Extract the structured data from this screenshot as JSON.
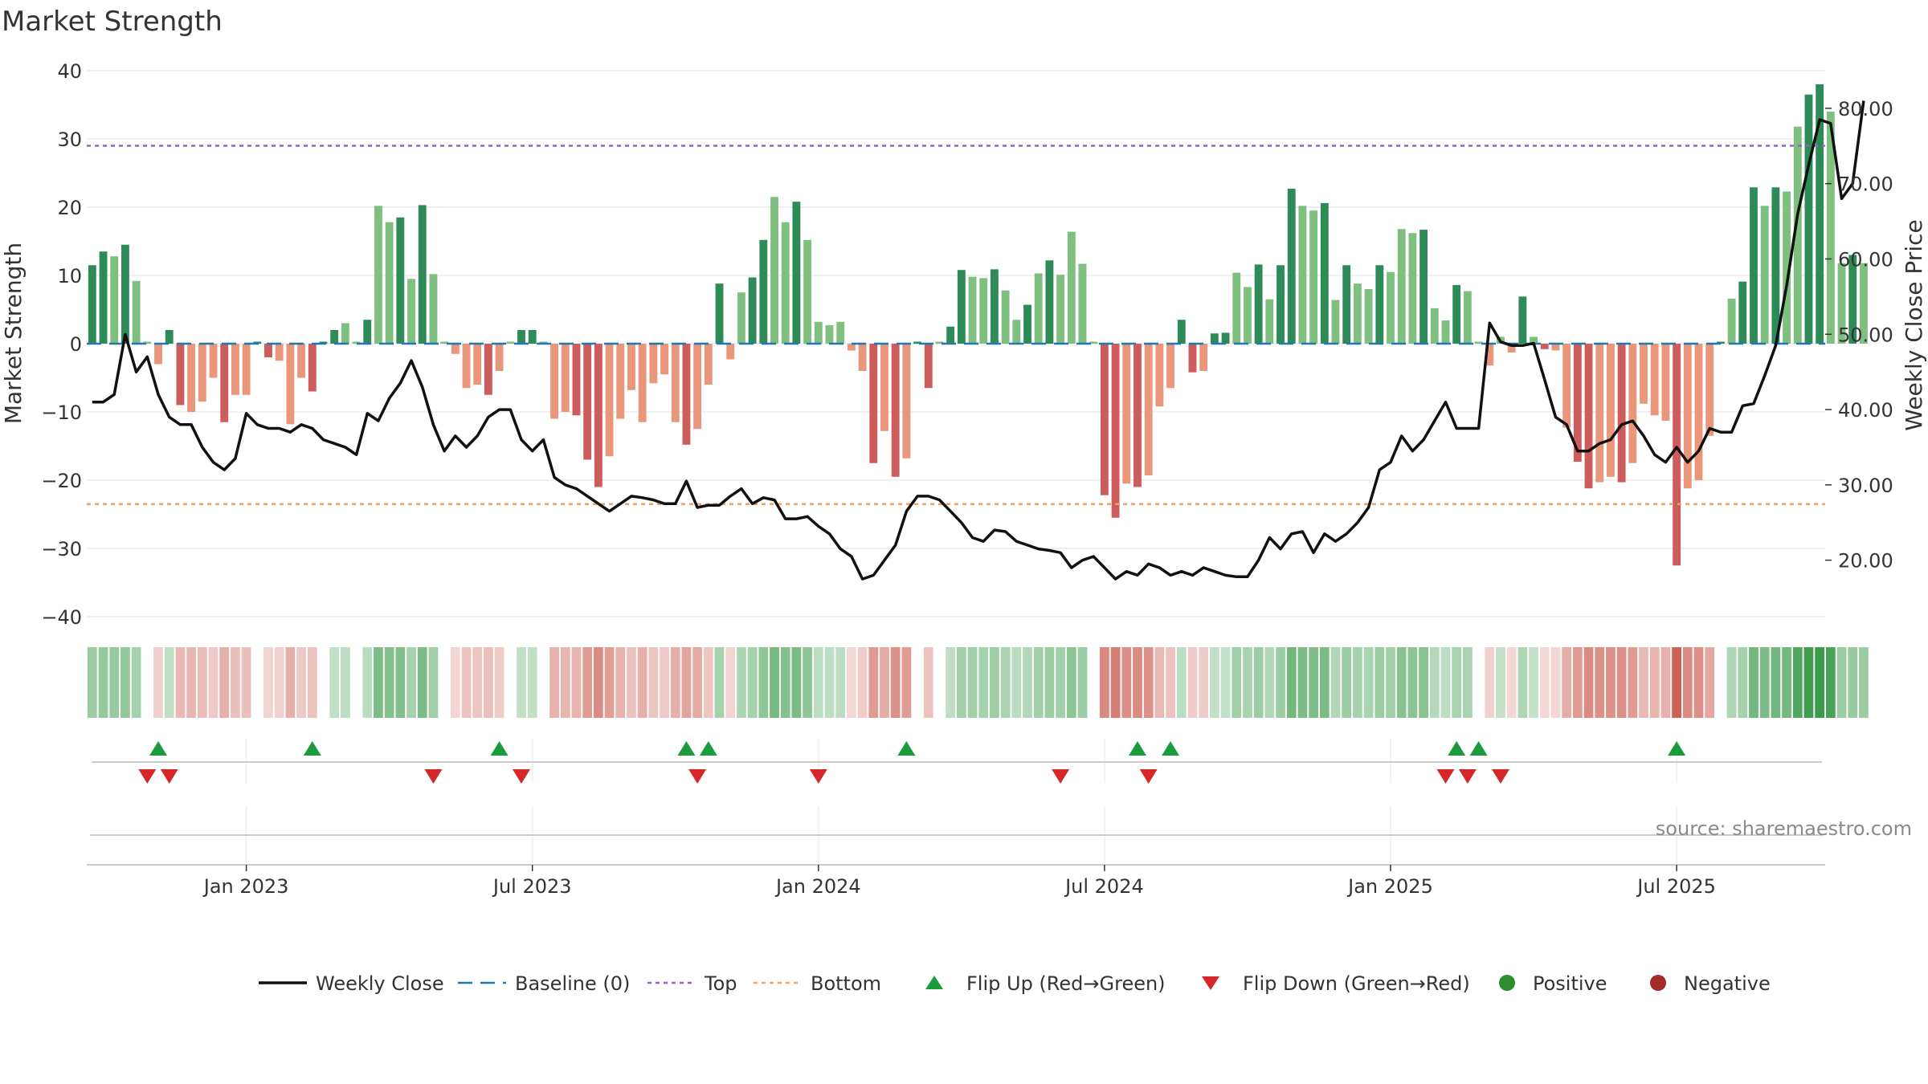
{
  "chart_data": {
    "type": "bar",
    "title": "Market Strength",
    "ylabel_left": "Market Strength",
    "ylabel_right": "Weekly Close Price",
    "ylim_left": [
      -40,
      40
    ],
    "ylim_right": [
      12.5,
      85
    ],
    "left_ticks": [
      40,
      30,
      20,
      10,
      0,
      -10,
      -20,
      -30,
      -40
    ],
    "left_tick_labels": [
      "40",
      "30",
      "20",
      "10",
      "0",
      "−10",
      "−20",
      "−30",
      "−40"
    ],
    "right_ticks": [
      80,
      70,
      60,
      50,
      40,
      30,
      20
    ],
    "right_tick_labels": [
      "80.00",
      "70.00",
      "60.00",
      "50.00",
      "40.00",
      "30.00",
      "20.00"
    ],
    "x_tick_positions": [
      14,
      40,
      66,
      92,
      118,
      144
    ],
    "x_tick_labels": [
      "Jan 2023",
      "Jul 2023",
      "Jan 2024",
      "Jul 2024",
      "Jan 2025",
      "Jul 2025"
    ],
    "top_threshold": 29,
    "bottom_threshold": -23.5,
    "baseline": 0,
    "weeks": 158,
    "strength": [
      11.5,
      13.5,
      12.8,
      14.5,
      9.2,
      0.0,
      -3.0,
      2.0,
      -9.0,
      -10.0,
      -8.5,
      -5.0,
      -11.5,
      -7.5,
      -7.5,
      0.0,
      -2.0,
      -2.5,
      -11.8,
      -5.0,
      -7.0,
      0.0,
      2.0,
      3.0,
      0.0,
      3.5,
      20.2,
      17.8,
      18.5,
      9.5,
      20.3,
      10.2,
      0.0,
      -1.5,
      -6.5,
      -6.0,
      -7.5,
      -4.0,
      0.0,
      2.0,
      2.0,
      0.0,
      -11.0,
      -10.0,
      -10.5,
      -17.0,
      -21.0,
      -16.5,
      -11.0,
      -6.8,
      -11.5,
      -5.8,
      -4.5,
      -11.5,
      -14.8,
      -12.5,
      -6.0,
      8.8,
      -2.3,
      7.5,
      9.7,
      15.2,
      21.5,
      17.8,
      20.8,
      15.2,
      3.2,
      2.7,
      3.2,
      -1.0,
      -4.0,
      -17.5,
      -12.8,
      -19.5,
      -16.8,
      0.0,
      -6.5,
      0.0,
      2.5,
      10.8,
      9.8,
      9.6,
      10.9,
      7.8,
      3.5,
      5.7,
      10.3,
      12.2,
      10.1,
      16.4,
      11.7,
      0.0,
      -22.2,
      -25.5,
      -20.5,
      -21.0,
      -19.3,
      -9.2,
      -6.5,
      3.5,
      -4.2,
      -4.0,
      1.5,
      1.6,
      10.4,
      8.3,
      11.6,
      6.5,
      11.5,
      22.7,
      20.2,
      19.5,
      20.6,
      6.4,
      11.5,
      8.8,
      8.0,
      11.5,
      10.5,
      16.8,
      16.2,
      16.7,
      5.2,
      3.4,
      8.6,
      7.7,
      0.0,
      -3.2,
      1.0,
      -1.3,
      6.9,
      1.0,
      -0.8,
      -1.0,
      -12.3,
      -17.3,
      -21.2,
      -20.3,
      -19.5,
      -20.3,
      -17.5,
      -8.8,
      -10.5,
      -11.3,
      -32.5,
      -21.2,
      -20.0,
      -13.5,
      0.0,
      6.6,
      9.1,
      22.9,
      20.2,
      22.9,
      22.3,
      31.8,
      36.5,
      38.0,
      34.0,
      11.8,
      13.0,
      11.8
    ],
    "price": [
      41.0,
      41.0,
      42.0,
      50.0,
      45.0,
      47.0,
      42.0,
      39.0,
      38.0,
      38.0,
      35.0,
      33.0,
      32.0,
      33.5,
      39.5,
      38.0,
      37.5,
      37.5,
      37.0,
      38.0,
      37.5,
      36.0,
      35.5,
      35.0,
      34.0,
      39.5,
      38.5,
      41.5,
      43.5,
      46.5,
      43.0,
      38.0,
      34.5,
      36.5,
      35.0,
      36.5,
      39.0,
      40.0,
      40.0,
      36.0,
      34.5,
      36.0,
      31.0,
      30.0,
      29.5,
      28.5,
      27.5,
      26.5,
      27.5,
      28.5,
      28.3,
      28.0,
      27.5,
      27.5,
      30.5,
      27.0,
      27.3,
      27.3,
      28.5,
      29.5,
      27.5,
      28.3,
      28.0,
      25.5,
      25.5,
      25.8,
      24.5,
      23.5,
      21.5,
      20.5,
      17.5,
      18.0,
      20.0,
      22.0,
      26.5,
      28.5,
      28.5,
      28.0,
      26.5,
      25.0,
      23.0,
      22.5,
      24.0,
      23.8,
      22.5,
      22.0,
      21.5,
      21.3,
      21.0,
      19.0,
      20.0,
      20.5,
      19.0,
      17.5,
      18.5,
      18.0,
      19.5,
      19.0,
      18.0,
      18.5,
      18.0,
      19.0,
      18.5,
      18.0,
      17.8,
      17.8,
      20.0,
      23.0,
      21.5,
      23.5,
      23.8,
      21.0,
      23.5,
      22.5,
      23.5,
      25.0,
      27.0,
      32.0,
      33.0,
      36.5,
      34.5,
      36.0,
      38.5,
      41.0,
      37.5,
      37.5,
      37.5,
      51.5,
      49.0,
      48.5,
      48.5,
      48.8,
      44.0,
      39.0,
      38.0,
      34.5,
      34.5,
      35.5,
      36.0,
      38.0,
      38.5,
      36.5,
      34.0,
      33.0,
      35.0,
      33.0,
      34.5,
      37.5,
      37.0,
      37.0,
      40.5,
      40.8,
      44.5,
      48.5,
      56.5,
      66.0,
      72.5,
      78.5,
      78.0,
      68.0,
      70.0,
      81.0
    ],
    "flip_up_weeks": [
      6,
      20,
      37,
      54,
      56,
      74,
      95,
      98,
      124,
      126,
      144
    ],
    "flip_down_weeks": [
      5,
      7,
      31,
      39,
      55,
      66,
      88,
      96,
      123,
      125,
      128
    ],
    "legend": [
      {
        "label": "Weekly Close",
        "color": "#111111",
        "style": "line"
      },
      {
        "label": "Baseline (0)",
        "color": "#1f77b4",
        "style": "dashed"
      },
      {
        "label": "Top",
        "color": "#9467bd",
        "style": "dotted"
      },
      {
        "label": "Bottom",
        "color": "#f0a060",
        "style": "dotted"
      },
      {
        "label": "Flip Up (Red→Green)",
        "color": "#1a9c3c",
        "style": "triangle-up"
      },
      {
        "label": "Flip Down (Green→Red)",
        "color": "#d62728",
        "style": "triangle-down"
      },
      {
        "label": "Positive",
        "color": "#2e8b2e",
        "style": "dot"
      },
      {
        "label": "Negative",
        "color": "#a52a2a",
        "style": "dot"
      }
    ],
    "legend_position": "bottom-center",
    "source_text": "source: sharemaestro.com",
    "colors": {
      "pos_strong": "#2e8b57",
      "pos_weak": "#7fbf7f",
      "neg_strong": "#cd5c5c",
      "neg_weak": "#e9967a",
      "price_line": "#111111",
      "top_line": "#9467bd",
      "bottom_line": "#f0a060",
      "baseline": "#1f77b4"
    }
  }
}
